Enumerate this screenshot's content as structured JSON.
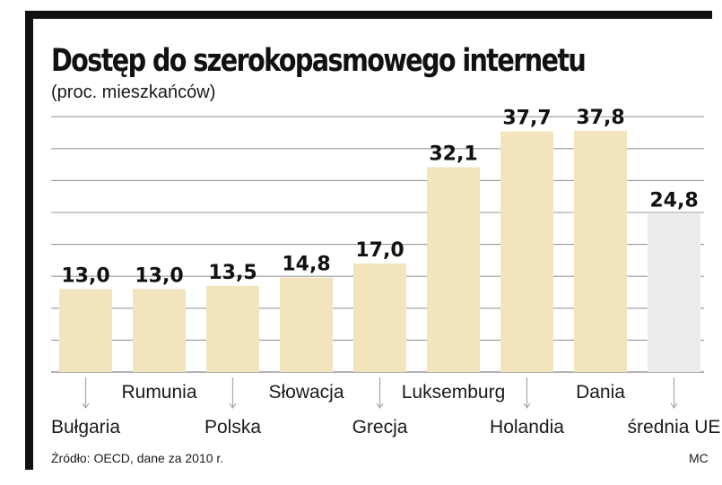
{
  "chart_data": {
    "type": "bar",
    "title": "Dostęp do szerokopasmowego internetu",
    "subtitle": "(proc. mieszkańców)",
    "categories": [
      "Bułgaria",
      "Rumunia",
      "Polska",
      "Słowacja",
      "Grecja",
      "Luksemburg",
      "Holandia",
      "Dania",
      "średnia UE"
    ],
    "values": [
      13.0,
      13.0,
      13.5,
      14.8,
      17.0,
      32.1,
      37.7,
      37.8,
      24.8
    ],
    "value_labels": [
      "13,0",
      "13,0",
      "13,5",
      "14,8",
      "17,0",
      "32,1",
      "37,7",
      "37,8",
      "24,8"
    ],
    "ylim": [
      0,
      40
    ],
    "xlabel": "",
    "ylabel": "",
    "grid": true,
    "legend": "none",
    "colors": {
      "bar": "#f2e4bd",
      "bar_average": "#ececec",
      "grid": "#9a9a9a",
      "frame": "#111111"
    }
  },
  "footer": {
    "source": "Źródło: OECD, dane za 2010 r.",
    "credit": "MC"
  }
}
